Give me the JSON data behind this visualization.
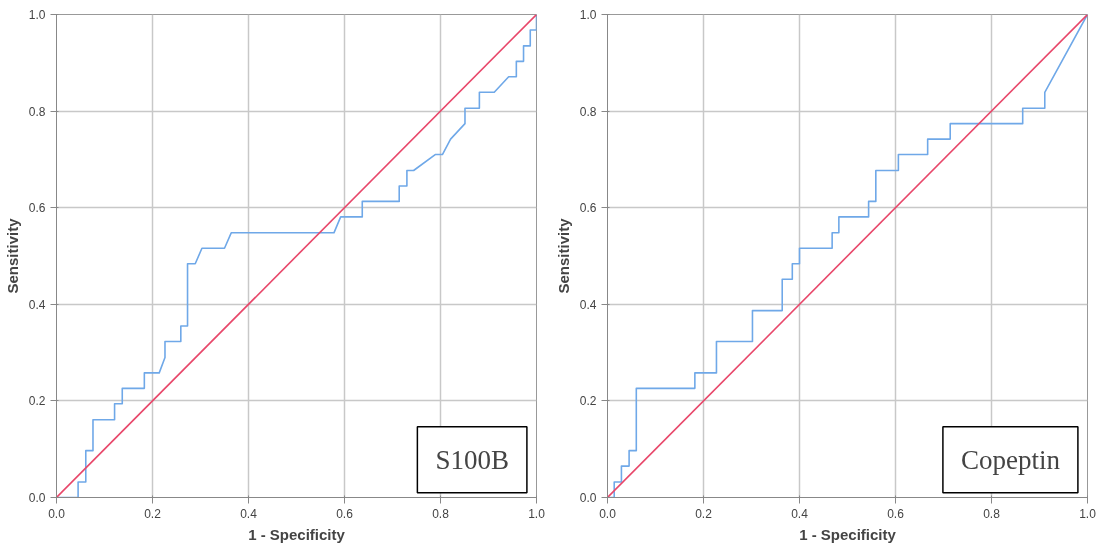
{
  "chart_data": [
    {
      "type": "line",
      "xlabel": "1 - Specificity",
      "ylabel": "Sensitivity",
      "annotations": [
        "S100B"
      ],
      "xlim": [
        0,
        1
      ],
      "ylim": [
        0,
        1
      ],
      "xticks": [
        {
          "value": 0,
          "label": "0.0"
        },
        {
          "value": 0.2,
          "label": "0.2"
        },
        {
          "value": 0.4,
          "label": "0.4"
        },
        {
          "value": 0.6,
          "label": "0.6"
        },
        {
          "value": 0.8,
          "label": "0.8"
        },
        {
          "value": 1,
          "label": "1.0"
        }
      ],
      "yticks": [
        {
          "value": 0,
          "label": "0.0"
        },
        {
          "value": 0.2,
          "label": "0.2"
        },
        {
          "value": 0.4,
          "label": "0.4"
        },
        {
          "value": 0.6,
          "label": "0.6"
        },
        {
          "value": 0.8,
          "label": "0.8"
        },
        {
          "value": 1,
          "label": "1.0"
        }
      ],
      "grid": true,
      "marker": "none",
      "line_style": "solid",
      "series": [
        {
          "color": "#6fa8e8",
          "x": [
            0,
            0.045,
            0.045,
            0.061,
            0.061,
            0.076,
            0.076,
            0.121,
            0.121,
            0.137,
            0.137,
            0.183,
            0.183,
            0.214,
            0.226,
            0.226,
            0.259,
            0.259,
            0.273,
            0.273,
            0.289,
            0.303,
            0.35,
            0.364,
            0.578,
            0.592,
            0.637,
            0.637,
            0.714,
            0.714,
            0.73,
            0.73,
            0.744,
            0.789,
            0.804,
            0.821,
            0.851,
            0.851,
            0.881,
            0.881,
            0.912,
            0.942,
            0.942,
            0.958,
            0.958,
            0.973,
            0.973,
            0.987,
            0.987,
            1.0,
            1.0
          ],
          "values": [
            0,
            0,
            0.032,
            0.032,
            0.097,
            0.097,
            0.161,
            0.161,
            0.194,
            0.194,
            0.226,
            0.226,
            0.258,
            0.258,
            0.29,
            0.323,
            0.323,
            0.355,
            0.355,
            0.484,
            0.484,
            0.516,
            0.516,
            0.548,
            0.548,
            0.581,
            0.581,
            0.613,
            0.613,
            0.645,
            0.645,
            0.677,
            0.677,
            0.71,
            0.71,
            0.742,
            0.774,
            0.806,
            0.806,
            0.839,
            0.839,
            0.871,
            0.871,
            0.871,
            0.903,
            0.903,
            0.935,
            0.935,
            0.968,
            0.968,
            1.0
          ]
        },
        {
          "color": "#e8476a",
          "x": [
            0,
            1
          ],
          "values": [
            0,
            1
          ]
        }
      ]
    },
    {
      "type": "line",
      "xlabel": "1 - Specificity",
      "ylabel": "Sensitivity",
      "annotations": [
        "Copeptin"
      ],
      "xlim": [
        0,
        1
      ],
      "ylim": [
        0,
        1
      ],
      "xticks": [
        {
          "value": 0,
          "label": "0.0"
        },
        {
          "value": 0.2,
          "label": "0.2"
        },
        {
          "value": 0.4,
          "label": "0.4"
        },
        {
          "value": 0.6,
          "label": "0.6"
        },
        {
          "value": 0.8,
          "label": "0.8"
        },
        {
          "value": 1,
          "label": "1.0"
        }
      ],
      "yticks": [
        {
          "value": 0,
          "label": "0.0"
        },
        {
          "value": 0.2,
          "label": "0.2"
        },
        {
          "value": 0.4,
          "label": "0.4"
        },
        {
          "value": 0.6,
          "label": "0.6"
        },
        {
          "value": 0.8,
          "label": "0.8"
        },
        {
          "value": 1,
          "label": "1.0"
        }
      ],
      "grid": true,
      "marker": "none",
      "line_style": "solid",
      "series": [
        {
          "color": "#6fa8e8",
          "x": [
            0,
            0.014,
            0.014,
            0.029,
            0.029,
            0.045,
            0.045,
            0.06,
            0.06,
            0.182,
            0.182,
            0.227,
            0.227,
            0.302,
            0.302,
            0.364,
            0.364,
            0.385,
            0.385,
            0.4,
            0.4,
            0.468,
            0.468,
            0.482,
            0.482,
            0.544,
            0.544,
            0.559,
            0.559,
            0.606,
            0.606,
            0.667,
            0.667,
            0.714,
            0.714,
            0.865,
            0.865,
            0.911,
            0.911,
            1.0
          ],
          "values": [
            0,
            0,
            0.032,
            0.032,
            0.065,
            0.065,
            0.097,
            0.097,
            0.226,
            0.226,
            0.258,
            0.258,
            0.323,
            0.323,
            0.387,
            0.387,
            0.452,
            0.452,
            0.484,
            0.484,
            0.516,
            0.516,
            0.548,
            0.548,
            0.581,
            0.581,
            0.613,
            0.613,
            0.677,
            0.677,
            0.71,
            0.71,
            0.742,
            0.742,
            0.774,
            0.774,
            0.806,
            0.806,
            0.839,
            1.0
          ]
        },
        {
          "color": "#e8476a",
          "x": [
            0,
            1
          ],
          "values": [
            0,
            1
          ]
        }
      ]
    }
  ]
}
